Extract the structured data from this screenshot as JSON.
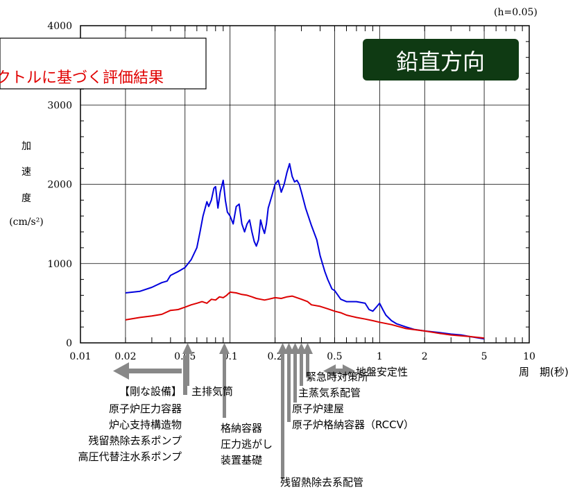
{
  "chart_data": {
    "type": "line",
    "xscale": "log",
    "xlim": [
      0.01,
      10
    ],
    "ylim": [
      0,
      4000
    ],
    "x_ticks": [
      "0.01",
      "0.02",
      "0.05",
      "0.1",
      "0.2",
      "0.5",
      "1",
      "2",
      "5",
      "10"
    ],
    "y_ticks": [
      "0",
      "1000",
      "2000",
      "3000",
      "4000"
    ],
    "xlabel": "周　期(秒)",
    "ylabel_chars": [
      "加",
      "速",
      "度"
    ],
    "yunit": "(cm/s²)",
    "damping_note": "(h=0.05)",
    "banner": "鉛直方向",
    "legend_box_text": "クトルに基づく評価結果",
    "grid": true,
    "series": [
      {
        "color": "#0000dd",
        "x": [
          0.02,
          0.025,
          0.03,
          0.035,
          0.038,
          0.04,
          0.045,
          0.05,
          0.055,
          0.06,
          0.063,
          0.066,
          0.07,
          0.072,
          0.075,
          0.078,
          0.08,
          0.083,
          0.086,
          0.09,
          0.093,
          0.096,
          0.1,
          0.105,
          0.11,
          0.115,
          0.12,
          0.125,
          0.13,
          0.135,
          0.14,
          0.145,
          0.15,
          0.155,
          0.16,
          0.165,
          0.17,
          0.175,
          0.18,
          0.19,
          0.2,
          0.21,
          0.22,
          0.23,
          0.24,
          0.25,
          0.26,
          0.27,
          0.28,
          0.29,
          0.3,
          0.32,
          0.35,
          0.38,
          0.4,
          0.43,
          0.45,
          0.48,
          0.5,
          0.55,
          0.6,
          0.7,
          0.8,
          0.85,
          0.9,
          0.95,
          1.0,
          1.05,
          1.1,
          1.2,
          1.3,
          1.5,
          1.7,
          2.0,
          2.5,
          3.0,
          3.5,
          4.0,
          5.0
        ],
        "y": [
          630,
          650,
          700,
          760,
          780,
          850,
          900,
          950,
          1050,
          1200,
          1400,
          1600,
          1780,
          1720,
          1800,
          1950,
          1970,
          1700,
          1900,
          2050,
          1800,
          1650,
          1600,
          1500,
          1720,
          1750,
          1500,
          1400,
          1500,
          1550,
          1400,
          1280,
          1220,
          1300,
          1550,
          1450,
          1380,
          1500,
          1700,
          1850,
          2000,
          2050,
          1900,
          2000,
          2150,
          2260,
          2100,
          2030,
          2050,
          2000,
          1900,
          1700,
          1480,
          1300,
          1100,
          900,
          800,
          680,
          660,
          550,
          520,
          520,
          500,
          420,
          400,
          450,
          500,
          420,
          350,
          280,
          240,
          200,
          170,
          150,
          130,
          110,
          100,
          80,
          50
        ]
      },
      {
        "color": "#dd0000",
        "x": [
          0.02,
          0.025,
          0.03,
          0.035,
          0.04,
          0.045,
          0.05,
          0.055,
          0.06,
          0.065,
          0.07,
          0.075,
          0.08,
          0.085,
          0.09,
          0.095,
          0.1,
          0.11,
          0.12,
          0.13,
          0.14,
          0.15,
          0.16,
          0.17,
          0.18,
          0.2,
          0.22,
          0.24,
          0.26,
          0.28,
          0.3,
          0.33,
          0.35,
          0.4,
          0.45,
          0.5,
          0.55,
          0.6,
          0.7,
          0.8,
          0.9,
          1.0,
          1.2,
          1.5,
          2.0,
          2.5,
          3.0,
          4.0,
          5.0
        ],
        "y": [
          290,
          320,
          340,
          360,
          410,
          420,
          450,
          480,
          500,
          520,
          500,
          550,
          540,
          580,
          570,
          600,
          640,
          630,
          610,
          600,
          580,
          560,
          550,
          540,
          550,
          570,
          560,
          580,
          590,
          570,
          550,
          520,
          480,
          460,
          430,
          400,
          380,
          350,
          320,
          300,
          280,
          260,
          230,
          180,
          150,
          120,
          100,
          80,
          60
        ]
      }
    ]
  },
  "annotations": {
    "rigid_equipment": [
      "【剛な設備】",
      "原子炉圧力容器",
      "炉心支持構造物",
      "残留熱除去系ポンプ",
      "高圧代替注水系ポンプ"
    ],
    "main_exhaust_stack": "主排気筒",
    "containment_support": [
      "格納容器",
      "圧力逃がし",
      "装置基礎"
    ],
    "rhr_piping": "残留熱除去系配管",
    "main_steam_piping": "主蒸気系配管",
    "reactor_building": "原子炉建屋",
    "rccv": "原子炉格納容器（RCCV）",
    "emergency_center": "緊急時対策所",
    "ground_stability": "地盤安定性"
  }
}
